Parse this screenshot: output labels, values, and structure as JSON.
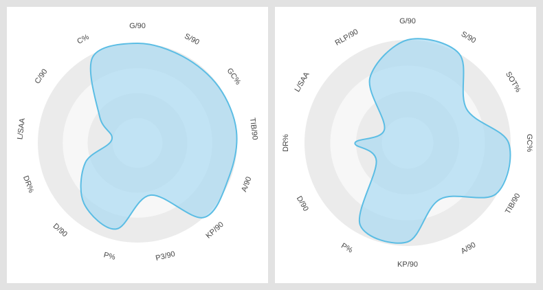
{
  "chart_data": [
    {
      "type": "radar",
      "categories": [
        "G/90",
        "S/90",
        "GC%",
        "TIB/90",
        "A/90",
        "KP/90",
        "P3/90",
        "P%",
        "D/90",
        "DR%",
        "L/SAA",
        "C/90",
        "C%"
      ],
      "values": [
        100,
        98,
        99,
        100,
        98,
        100,
        54,
        89,
        81,
        56,
        26,
        46,
        97
      ],
      "ylim": [
        0,
        100
      ],
      "yticks": [
        25,
        50,
        75,
        100
      ],
      "color": "#5bbde4"
    },
    {
      "type": "radar",
      "categories": [
        "G/90",
        "S/90",
        "SOT%",
        "GC%",
        "TIB/90",
        "A/90",
        "KP/90",
        "P%",
        "D/90",
        "DR%",
        "L/SAA",
        "RLP/90"
      ],
      "values": [
        100,
        100,
        66,
        98,
        99,
        63,
        96,
        92,
        35,
        51,
        26,
        73
      ],
      "ylim": [
        0,
        100
      ],
      "yticks": [
        25,
        50,
        75,
        100
      ],
      "color": "#5bbde4"
    }
  ]
}
